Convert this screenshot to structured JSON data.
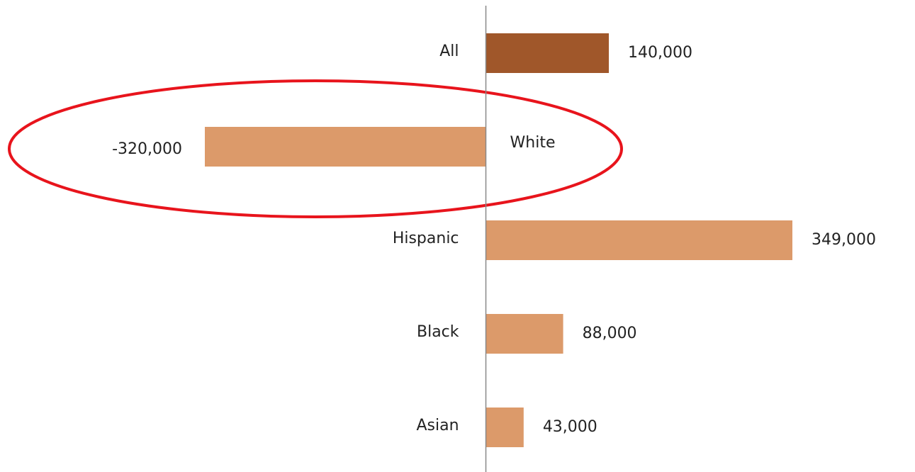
{
  "chart_data": {
    "type": "bar",
    "orientation": "horizontal",
    "categories": [
      "All",
      "White",
      "Hispanic",
      "Black",
      "Asian"
    ],
    "values": [
      140000,
      -320000,
      349000,
      88000,
      43000
    ],
    "value_labels": [
      "140,000",
      "-320,000",
      "349,000",
      "88,000",
      "43,000"
    ],
    "colors": [
      "#a0572a",
      "#dc9a6a",
      "#dc9a6a",
      "#dc9a6a",
      "#dc9a6a"
    ]
  }
}
